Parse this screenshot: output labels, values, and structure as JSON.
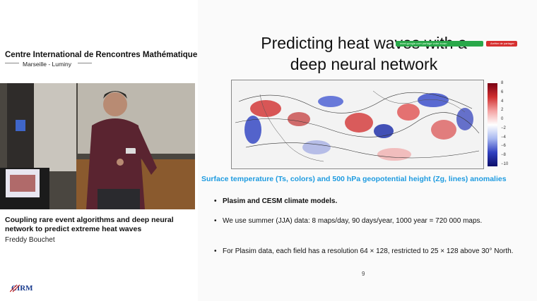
{
  "left_panel": {
    "org_title": "Centre International de Rencontres Mathématiques",
    "org_subtitle": "Marseille - Luminy",
    "talk_title": "Coupling rare event algorithms and deep neural network to predict extreme heat waves",
    "speaker": "Freddy Bouchet",
    "logo_text": "CIRM"
  },
  "slide": {
    "title_line1": "Predicting heat waves with a",
    "title_line2": "deep neural network",
    "caption": "Surface temperature (Ts, colors) and 500 hPa geopotential height (Zg, lines) anomalies",
    "bullets": [
      "Plasim and CESM climate models.",
      "We use summer (JJA) data: 8 maps/day, 90 days/year, 1000 year = 720 000 maps.",
      "For Plasim data, each field has a resolution 64 × 128, restricted to 25 × 128 above 30° North."
    ],
    "page_number": "9"
  },
  "overlay": {
    "share_notice": "meet.google.com partage votre écran",
    "stop_button": "Arrêter de partager"
  },
  "colorbar": {
    "ticks": [
      "8",
      "6",
      "4",
      "2",
      "0",
      "−2",
      "−4",
      "−6",
      "−8",
      "−10"
    ],
    "colors": {
      "high": "#7a0013",
      "mid": "#ffffff",
      "low": "#0b0d6a"
    }
  }
}
